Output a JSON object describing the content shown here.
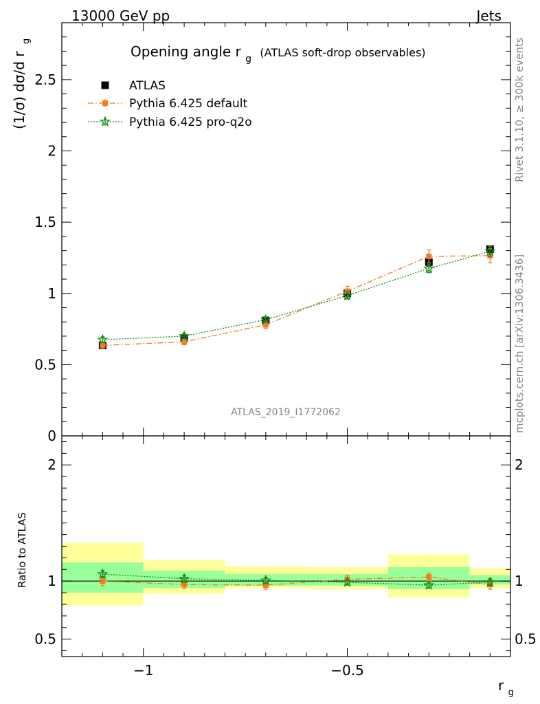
{
  "header": {
    "left": "13000 GeV pp",
    "right": "Jets"
  },
  "sidebar": {
    "rivet": "Rivet 3.1.10, ≥ 300k events",
    "mcplots": "mcplots.cern.ch [arXiv:1306.3436]"
  },
  "chart_data": [
    {
      "type": "scatter",
      "panel": "main",
      "title_main": "Opening angle r",
      "title_sub": "g",
      "title_extra": "(ATLAS soft-drop observables)",
      "ylabel_main": "(1/σ) dσ/d r",
      "ylabel_sub": "g",
      "analysis_label": "ATLAS_2019_I1772062",
      "xlim": [
        -1.2,
        -0.1
      ],
      "ylim": [
        0,
        2.9
      ],
      "yticks": [
        {
          "v": 0,
          "label": "0"
        },
        {
          "v": 0.5,
          "label": "0.5"
        },
        {
          "v": 1,
          "label": "1"
        },
        {
          "v": 1.5,
          "label": "1.5"
        },
        {
          "v": 2,
          "label": "2"
        },
        {
          "v": 2.5,
          "label": "2.5"
        }
      ],
      "legend": [
        {
          "key": "atlas",
          "label": "ATLAS"
        },
        {
          "key": "default",
          "label": "Pythia 6.425 default"
        },
        {
          "key": "proq2o",
          "label": "Pythia 6.425 pro-q2o"
        }
      ],
      "bins": [
        [
          -1.2,
          -1.0
        ],
        [
          -1.0,
          -0.8
        ],
        [
          -0.8,
          -0.6
        ],
        [
          -0.6,
          -0.4
        ],
        [
          -0.4,
          -0.2
        ],
        [
          -0.2,
          -0.1
        ]
      ],
      "series": [
        {
          "key": "atlas",
          "name": "ATLAS",
          "color": "#000000",
          "x": [
            -1.1,
            -0.9,
            -0.7,
            -0.5,
            -0.3,
            -0.15
          ],
          "y": [
            0.635,
            0.685,
            0.81,
            1.0,
            1.22,
            1.31
          ],
          "err": [
            0.02,
            0.02,
            0.02,
            0.02,
            0.03,
            0.02
          ]
        },
        {
          "key": "default",
          "name": "Pythia 6.425 default",
          "color": "#f47b20",
          "x": [
            -1.1,
            -0.9,
            -0.7,
            -0.5,
            -0.3,
            -0.15
          ],
          "y": [
            0.635,
            0.66,
            0.78,
            1.015,
            1.26,
            1.265
          ],
          "err": [
            0.02,
            0.02,
            0.025,
            0.035,
            0.045,
            0.05
          ]
        },
        {
          "key": "proq2o",
          "name": "Pythia 6.425 pro-q2o",
          "color": "#1a8a1a",
          "x": [
            -1.1,
            -0.9,
            -0.7,
            -0.5,
            -0.3,
            -0.15
          ],
          "y": [
            0.675,
            0.7,
            0.815,
            0.985,
            1.175,
            1.295
          ],
          "err": [
            0.02,
            0.02,
            0.02,
            0.025,
            0.03,
            0.035
          ]
        }
      ]
    },
    {
      "type": "scatter",
      "panel": "ratio",
      "ylabel": "Ratio to ATLAS",
      "xlabel_main": "r",
      "xlabel_sub": "g",
      "xlim": [
        -1.2,
        -0.1
      ],
      "ylim": [
        0.35,
        2.25
      ],
      "xticks": [
        {
          "v": -1,
          "label": "−1"
        },
        {
          "v": -0.5,
          "label": "−0.5"
        }
      ],
      "yticks": [
        {
          "v": 0.5,
          "label": "0.5"
        },
        {
          "v": 1,
          "label": "1"
        },
        {
          "v": 2,
          "label": "2"
        }
      ],
      "bands": {
        "bins": [
          [
            -1.2,
            -1.0
          ],
          [
            -1.0,
            -0.8
          ],
          [
            -0.8,
            -0.6
          ],
          [
            -0.6,
            -0.4
          ],
          [
            -0.4,
            -0.2
          ],
          [
            -0.2,
            -0.1
          ]
        ],
        "yellow": [
          [
            0.79,
            1.33
          ],
          [
            0.89,
            1.18
          ],
          [
            0.94,
            1.13
          ],
          [
            0.93,
            1.12
          ],
          [
            0.86,
            1.23
          ],
          [
            0.94,
            1.11
          ]
        ],
        "green": [
          [
            0.9,
            1.16
          ],
          [
            0.94,
            1.09
          ],
          [
            0.96,
            1.06
          ],
          [
            0.96,
            1.06
          ],
          [
            0.93,
            1.12
          ],
          [
            0.97,
            1.05
          ]
        ]
      },
      "series": [
        {
          "key": "default",
          "name": "Pythia 6.425 default",
          "color": "#f47b20",
          "x": [
            -1.1,
            -0.9,
            -0.7,
            -0.5,
            -0.3,
            -0.15
          ],
          "y": [
            1.0,
            0.97,
            0.965,
            1.015,
            1.035,
            0.97
          ],
          "err": [
            0.04,
            0.035,
            0.035,
            0.035,
            0.035,
            0.04
          ]
        },
        {
          "key": "proq2o",
          "name": "Pythia 6.425 pro-q2o",
          "color": "#1a8a1a",
          "x": [
            -1.1,
            -0.9,
            -0.7,
            -0.5,
            -0.3,
            -0.15
          ],
          "y": [
            1.06,
            1.02,
            1.005,
            0.99,
            0.965,
            0.99
          ],
          "err": [
            0.03,
            0.03,
            0.025,
            0.025,
            0.025,
            0.03
          ]
        }
      ]
    }
  ]
}
